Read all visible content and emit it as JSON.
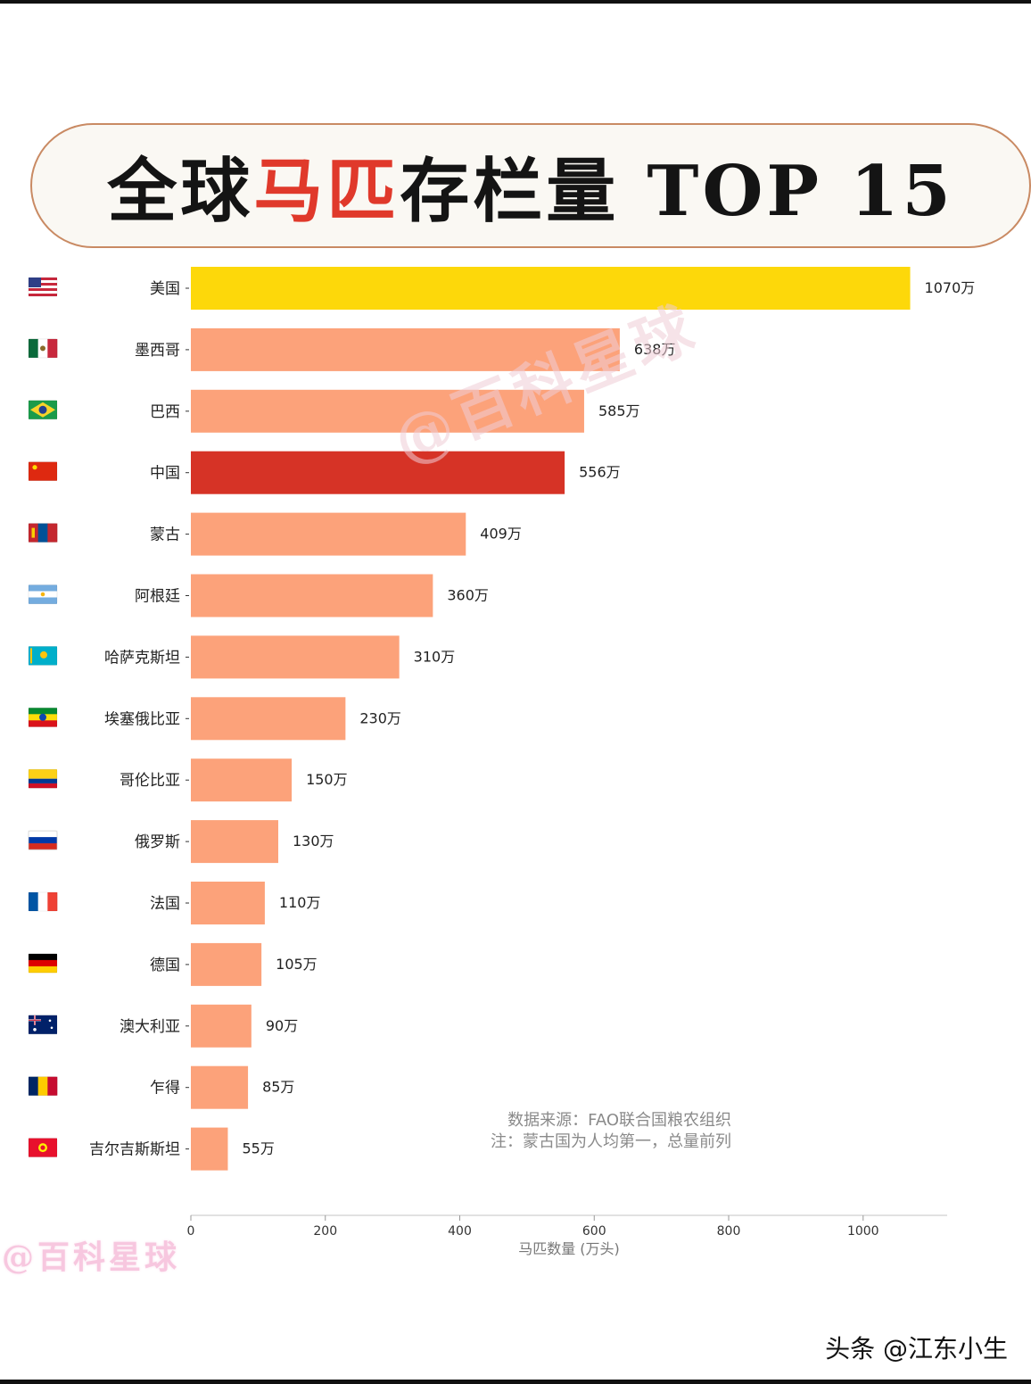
{
  "title": {
    "part1": "全球",
    "highlight": "马匹",
    "part2": "存栏量 TOP 15"
  },
  "watermark": "@百科星球",
  "source_note": {
    "line1": "数据来源：FAO联合国粮农组织",
    "line2": "注：蒙古国为人均第一，总量前列"
  },
  "footer_credit": "头条 @江东小生",
  "colors": {
    "highlight_us": "#fdd80a",
    "highlight_cn": "#d63326",
    "default_bar": "#fca27a",
    "title_accent": "#e0392b"
  },
  "chart_data": {
    "type": "bar",
    "orientation": "horizontal",
    "xlabel": "马匹数量 (万头)",
    "xlim": [
      0,
      1125
    ],
    "xticks": [
      0,
      200,
      400,
      600,
      800,
      1000
    ],
    "grid": false,
    "categories": [
      "美国",
      "墨西哥",
      "巴西",
      "中国",
      "蒙古",
      "阿根廷",
      "哈萨克斯坦",
      "埃塞俄比亚",
      "哥伦比亚",
      "俄罗斯",
      "法国",
      "德国",
      "澳大利亚",
      "乍得",
      "吉尔吉斯斯坦"
    ],
    "values": [
      1070,
      638,
      585,
      556,
      409,
      360,
      310,
      230,
      150,
      130,
      110,
      105,
      90,
      85,
      55
    ],
    "value_labels": [
      "1070万",
      "638万",
      "585万",
      "556万",
      "409万",
      "360万",
      "310万",
      "230万",
      "150万",
      "130万",
      "110万",
      "105万",
      "90万",
      "85万",
      "55万"
    ],
    "flags": [
      "us-flag-icon",
      "mexico-flag-icon",
      "brazil-flag-icon",
      "china-flag-icon",
      "mongolia-flag-icon",
      "argentina-flag-icon",
      "kazakhstan-flag-icon",
      "ethiopia-flag-icon",
      "colombia-flag-icon",
      "russia-flag-icon",
      "france-flag-icon",
      "germany-flag-icon",
      "australia-flag-icon",
      "chad-flag-icon",
      "kyrgyzstan-flag-icon"
    ],
    "highlighted": {
      "美国": "highlight_us",
      "中国": "highlight_cn"
    }
  }
}
